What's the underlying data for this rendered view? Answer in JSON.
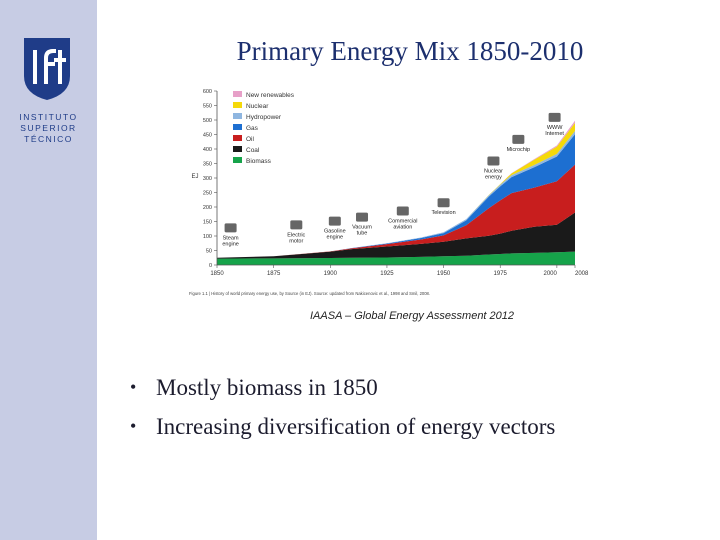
{
  "sidebar": {
    "logo_lines": [
      "INSTITUTO",
      "SUPERIOR",
      "TÉCNICO"
    ]
  },
  "slide": {
    "title": "Primary Energy Mix 1850-2010",
    "caption": "IAASA – Global Energy Assessment 2012",
    "bullets": [
      "Mostly biomass in 1850",
      "Increasing diversification of energy vectors"
    ]
  },
  "chart_data": {
    "type": "area",
    "stacked": true,
    "ylabel": "EJ",
    "ylim": [
      0,
      600
    ],
    "yticks": [
      0,
      50,
      100,
      150,
      200,
      250,
      300,
      350,
      400,
      450,
      500,
      550,
      600
    ],
    "xlim": [
      1850,
      2008
    ],
    "xtick_labels": [
      "1850",
      "1875",
      "1900",
      "1925",
      "1950",
      "1975",
      "2000",
      "2008"
    ],
    "xtick_values": [
      1850,
      1875,
      1900,
      1925,
      1950,
      1975,
      2000,
      2008
    ],
    "x": [
      1850,
      1875,
      1900,
      1910,
      1925,
      1940,
      1950,
      1960,
      1970,
      1975,
      1980,
      1990,
      2000,
      2008
    ],
    "series": [
      {
        "name": "Biomass",
        "color": "#16a34a",
        "values": [
          22,
          23,
          24,
          25,
          26,
          28,
          30,
          32,
          36,
          38,
          40,
          42,
          44,
          46
        ]
      },
      {
        "name": "Coal",
        "color": "#1a1a1a",
        "values": [
          3,
          7,
          22,
          30,
          38,
          45,
          50,
          60,
          65,
          70,
          78,
          90,
          95,
          135
        ]
      },
      {
        "name": "Oil",
        "color": "#c81e1e",
        "values": [
          0,
          0,
          1,
          3,
          8,
          15,
          22,
          45,
          95,
          115,
          130,
          135,
          150,
          165
        ]
      },
      {
        "name": "Gas",
        "color": "#1d6fd1",
        "values": [
          0,
          0,
          0,
          1,
          2,
          5,
          8,
          17,
          40,
          48,
          55,
          70,
          85,
          105
        ]
      },
      {
        "name": "Hydropower",
        "color": "#8fb6e0",
        "values": [
          0,
          0,
          0,
          0,
          1,
          2,
          3,
          4,
          5,
          6,
          7,
          8,
          9,
          11
        ]
      },
      {
        "name": "Nuclear",
        "color": "#f5d90a",
        "values": [
          0,
          0,
          0,
          0,
          0,
          0,
          0,
          0,
          1,
          2,
          6,
          18,
          25,
          28
        ]
      },
      {
        "name": "New renewables",
        "color": "#e7a0c8",
        "values": [
          0,
          0,
          0,
          0,
          0,
          0,
          0,
          0,
          0,
          0,
          1,
          2,
          4,
          8
        ]
      }
    ],
    "legend_placement": "top-left",
    "annotations": [
      {
        "text": "Steam engine",
        "x": 1856
      },
      {
        "text": "Electric motor",
        "x": 1885
      },
      {
        "text": "Gasoline engine",
        "x": 1902
      },
      {
        "text": "Vacuum tube",
        "x": 1914
      },
      {
        "text": "Commercial aviation",
        "x": 1932
      },
      {
        "text": "Television",
        "x": 1950
      },
      {
        "text": "Nuclear energy",
        "x": 1972
      },
      {
        "text": "Microchip",
        "x": 1983
      },
      {
        "text": "WWW Internet",
        "x": 1999
      }
    ],
    "figure_note": "Figure 1.1 | History of world primary energy use, by Source (in EJ). Source: updated from Nakicenovic et al., 1998 and Smil, 2008."
  }
}
